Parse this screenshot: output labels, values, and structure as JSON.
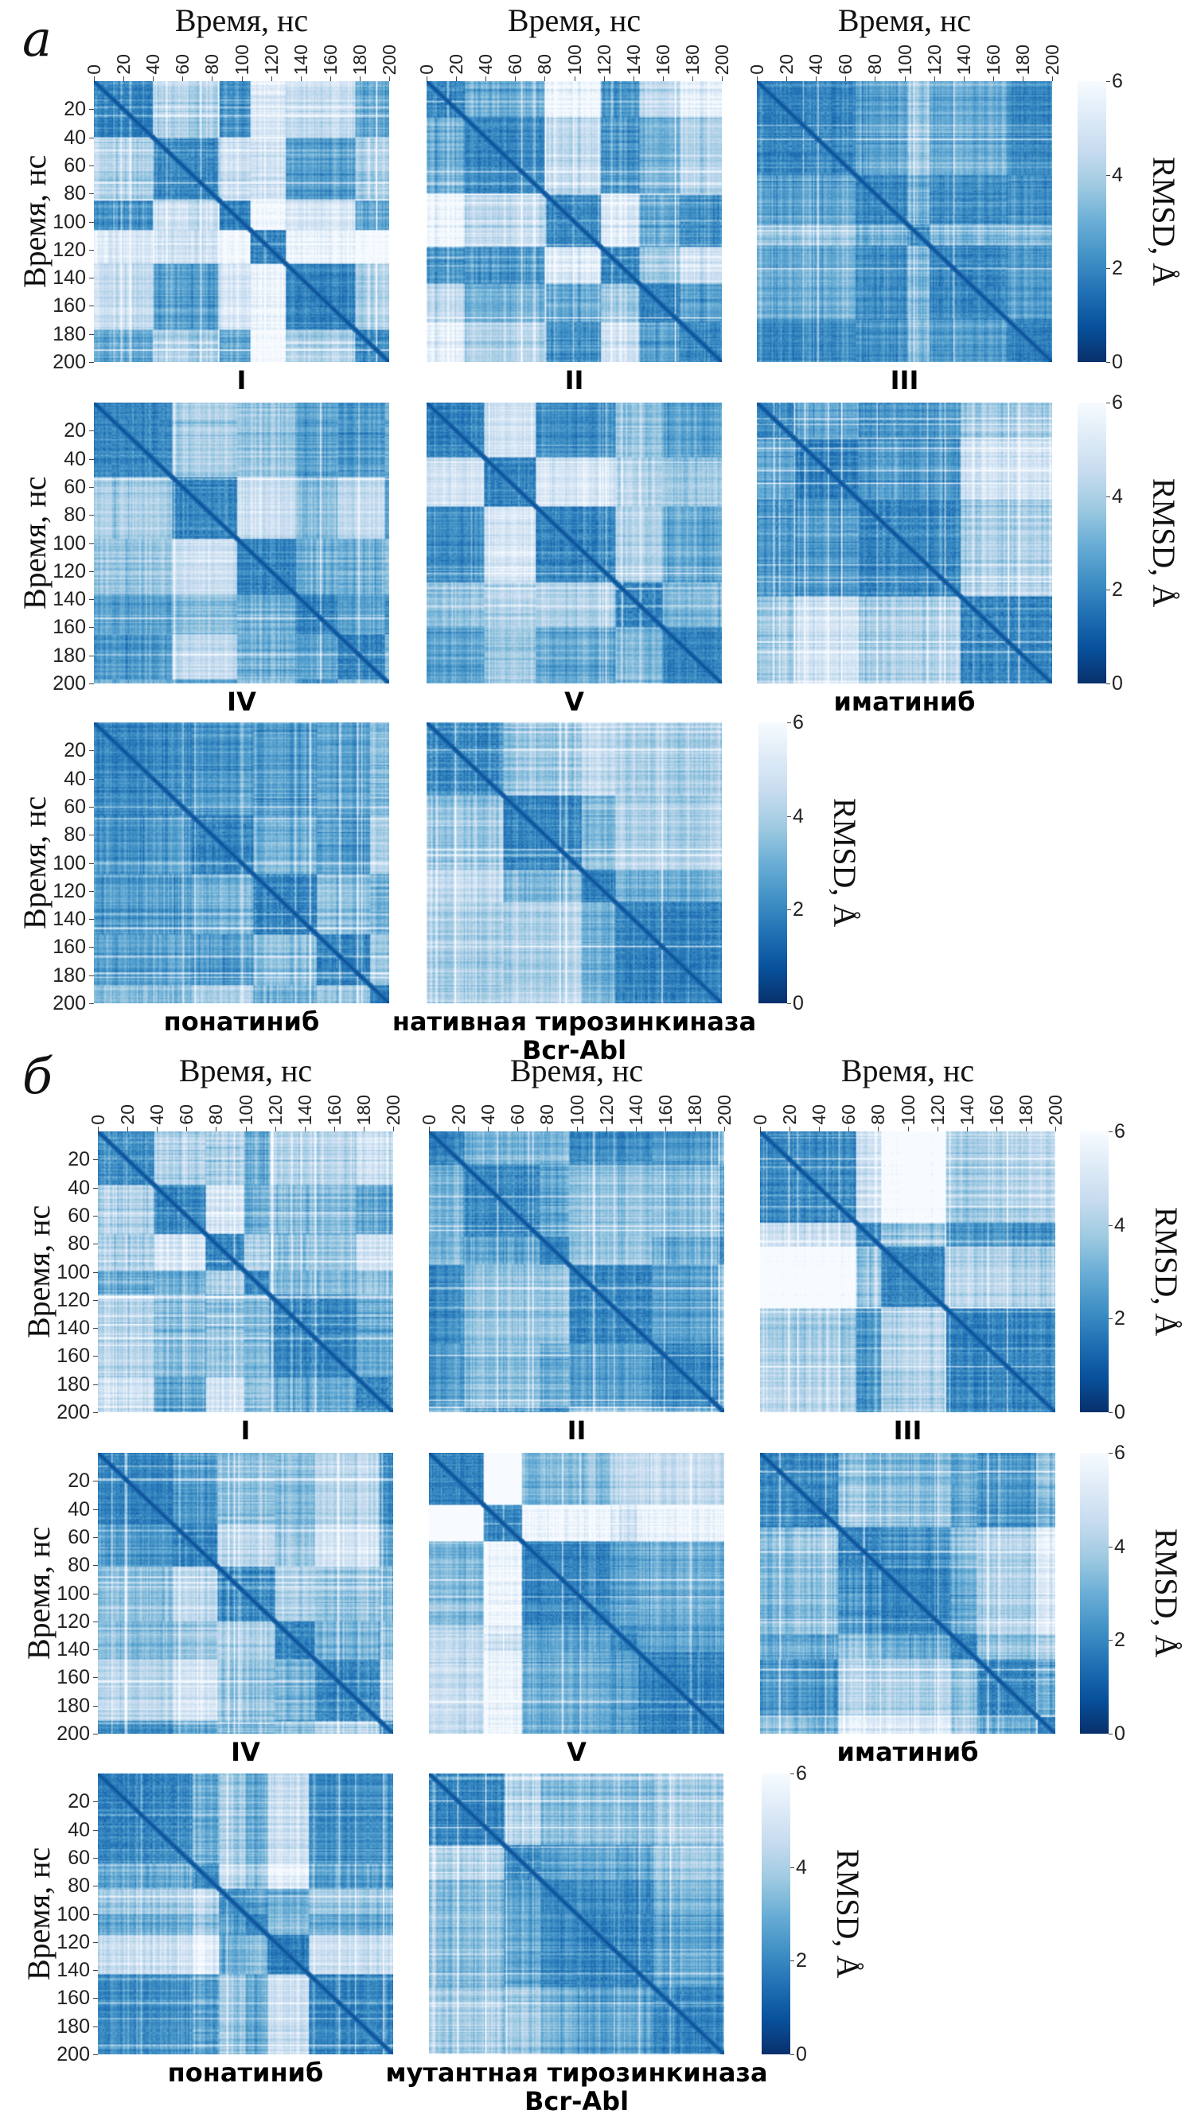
{
  "sections": [
    {
      "letter": "а"
    },
    {
      "letter": "б"
    }
  ],
  "colorbars": [
    {
      "section": 0,
      "row": 0,
      "label": "RMSD, Å",
      "ticks": [
        "0",
        "2",
        "4",
        "6"
      ],
      "range": [
        0,
        6
      ],
      "colormap": "Blues_r"
    },
    {
      "section": 0,
      "row": 1,
      "label": "RMSD, Å",
      "ticks": [
        "0",
        "2",
        "4",
        "6"
      ],
      "range": [
        0,
        6
      ],
      "colormap": "Blues_r"
    },
    {
      "section": 0,
      "row": 2,
      "label": "RMSD, Å",
      "ticks": [
        "0",
        "2",
        "4",
        "6"
      ],
      "range": [
        0,
        6
      ],
      "colormap": "Blues_r"
    },
    {
      "section": 1,
      "row": 0,
      "label": "RMSD, Å",
      "ticks": [
        "0",
        "2",
        "4",
        "6"
      ],
      "range": [
        0,
        6
      ],
      "colormap": "Blues_r"
    },
    {
      "section": 1,
      "row": 1,
      "label": "RMSD, Å",
      "ticks": [
        "0",
        "2",
        "4",
        "6"
      ],
      "range": [
        0,
        6
      ],
      "colormap": "Blues_r"
    },
    {
      "section": 1,
      "row": 2,
      "label": "RMSD, Å",
      "ticks": [
        "0",
        "2",
        "4",
        "6"
      ],
      "range": [
        0,
        6
      ],
      "colormap": "Blues_r"
    }
  ],
  "chart_data": [
    {
      "type": "heatmap",
      "section": 0,
      "row": 0,
      "col": 0,
      "title": [
        "I"
      ],
      "xlabel": "Время, нс",
      "ylabel": "Время, нс",
      "x_ticks": [
        "0",
        "20",
        "40",
        "60",
        "80",
        "100",
        "120",
        "140",
        "160",
        "180",
        "200"
      ],
      "y_ticks": [
        "20",
        "40",
        "60",
        "80",
        "100",
        "120",
        "140",
        "160",
        "180",
        "200"
      ],
      "xlim": [
        0,
        200
      ],
      "ylim": [
        200,
        0
      ],
      "value_range": [
        0,
        6
      ],
      "colormap": "Blues_r"
    },
    {
      "type": "heatmap",
      "section": 0,
      "row": 0,
      "col": 1,
      "title": [
        "II"
      ],
      "xlabel": "Время, нс",
      "x_ticks": [
        "0",
        "20",
        "40",
        "60",
        "80",
        "100",
        "120",
        "140",
        "160",
        "180",
        "200"
      ],
      "xlim": [
        0,
        200
      ],
      "ylim": [
        200,
        0
      ],
      "value_range": [
        0,
        6
      ],
      "colormap": "Blues_r"
    },
    {
      "type": "heatmap",
      "section": 0,
      "row": 0,
      "col": 2,
      "title": [
        "III"
      ],
      "xlabel": "Время, нс",
      "x_ticks": [
        "0",
        "20",
        "40",
        "60",
        "80",
        "100",
        "120",
        "140",
        "160",
        "180",
        "200"
      ],
      "xlim": [
        0,
        200
      ],
      "ylim": [
        200,
        0
      ],
      "value_range": [
        0,
        6
      ],
      "colormap": "Blues_r"
    },
    {
      "type": "heatmap",
      "section": 0,
      "row": 1,
      "col": 0,
      "title": [
        "IV"
      ],
      "ylabel": "Время, нс",
      "y_ticks": [
        "20",
        "40",
        "60",
        "80",
        "100",
        "120",
        "140",
        "160",
        "180",
        "200"
      ],
      "xlim": [
        0,
        200
      ],
      "ylim": [
        200,
        0
      ],
      "value_range": [
        0,
        6
      ],
      "colormap": "Blues_r"
    },
    {
      "type": "heatmap",
      "section": 0,
      "row": 1,
      "col": 1,
      "title": [
        "V"
      ],
      "xlim": [
        0,
        200
      ],
      "ylim": [
        200,
        0
      ],
      "value_range": [
        0,
        6
      ],
      "colormap": "Blues_r"
    },
    {
      "type": "heatmap",
      "section": 0,
      "row": 1,
      "col": 2,
      "title": [
        "иматиниб"
      ],
      "xlim": [
        0,
        200
      ],
      "ylim": [
        200,
        0
      ],
      "value_range": [
        0,
        6
      ],
      "colormap": "Blues_r"
    },
    {
      "type": "heatmap",
      "section": 0,
      "row": 2,
      "col": 0,
      "title": [
        "понатиниб"
      ],
      "ylabel": "Время, нс",
      "y_ticks": [
        "20",
        "40",
        "60",
        "80",
        "100",
        "120",
        "140",
        "160",
        "180",
        "200"
      ],
      "xlim": [
        0,
        200
      ],
      "ylim": [
        200,
        0
      ],
      "value_range": [
        0,
        6
      ],
      "colormap": "Blues_r"
    },
    {
      "type": "heatmap",
      "section": 0,
      "row": 2,
      "col": 1,
      "title": [
        "нативная тирозинкиназа",
        "Bcr-Abl"
      ],
      "xlim": [
        0,
        200
      ],
      "ylim": [
        200,
        0
      ],
      "value_range": [
        0,
        6
      ],
      "colormap": "Blues_r"
    },
    {
      "type": "heatmap",
      "section": 1,
      "row": 0,
      "col": 0,
      "title": [
        "I"
      ],
      "xlabel": "Время, нс",
      "ylabel": "Время, нс",
      "x_ticks": [
        "0",
        "20",
        "40",
        "60",
        "80",
        "100",
        "120",
        "140",
        "160",
        "180",
        "200"
      ],
      "y_ticks": [
        "20",
        "40",
        "60",
        "80",
        "100",
        "120",
        "140",
        "160",
        "180",
        "200"
      ],
      "xlim": [
        0,
        200
      ],
      "ylim": [
        200,
        0
      ],
      "value_range": [
        0,
        6
      ],
      "colormap": "Blues_r"
    },
    {
      "type": "heatmap",
      "section": 1,
      "row": 0,
      "col": 1,
      "title": [
        "II"
      ],
      "xlabel": "Время, нс",
      "x_ticks": [
        "0",
        "20",
        "40",
        "60",
        "80",
        "100",
        "120",
        "140",
        "160",
        "180",
        "200"
      ],
      "xlim": [
        0,
        200
      ],
      "ylim": [
        200,
        0
      ],
      "value_range": [
        0,
        6
      ],
      "colormap": "Blues_r"
    },
    {
      "type": "heatmap",
      "section": 1,
      "row": 0,
      "col": 2,
      "title": [
        "III"
      ],
      "xlabel": "Время, нс",
      "x_ticks": [
        "0",
        "20",
        "40",
        "60",
        "80",
        "100",
        "120",
        "140",
        "160",
        "180",
        "200"
      ],
      "xlim": [
        0,
        200
      ],
      "ylim": [
        200,
        0
      ],
      "value_range": [
        0,
        6
      ],
      "colormap": "Blues_r"
    },
    {
      "type": "heatmap",
      "section": 1,
      "row": 1,
      "col": 0,
      "title": [
        "IV"
      ],
      "ylabel": "Время, нс",
      "y_ticks": [
        "20",
        "40",
        "60",
        "80",
        "100",
        "120",
        "140",
        "160",
        "180",
        "200"
      ],
      "xlim": [
        0,
        200
      ],
      "ylim": [
        200,
        0
      ],
      "value_range": [
        0,
        6
      ],
      "colormap": "Blues_r"
    },
    {
      "type": "heatmap",
      "section": 1,
      "row": 1,
      "col": 1,
      "title": [
        "V"
      ],
      "xlim": [
        0,
        200
      ],
      "ylim": [
        200,
        0
      ],
      "value_range": [
        0,
        6
      ],
      "colormap": "Blues_r"
    },
    {
      "type": "heatmap",
      "section": 1,
      "row": 1,
      "col": 2,
      "title": [
        "иматиниб"
      ],
      "xlim": [
        0,
        200
      ],
      "ylim": [
        200,
        0
      ],
      "value_range": [
        0,
        6
      ],
      "colormap": "Blues_r"
    },
    {
      "type": "heatmap",
      "section": 1,
      "row": 2,
      "col": 0,
      "title": [
        "понатиниб"
      ],
      "ylabel": "Время, нс",
      "y_ticks": [
        "20",
        "40",
        "60",
        "80",
        "100",
        "120",
        "140",
        "160",
        "180",
        "200"
      ],
      "xlim": [
        0,
        200
      ],
      "ylim": [
        200,
        0
      ],
      "value_range": [
        0,
        6
      ],
      "colormap": "Blues_r"
    },
    {
      "type": "heatmap",
      "section": 1,
      "row": 2,
      "col": 1,
      "title": [
        "мутантная тирозинкиназа",
        "Bcr-Abl"
      ],
      "xlim": [
        0,
        200
      ],
      "ylim": [
        200,
        0
      ],
      "value_range": [
        0,
        6
      ],
      "colormap": "Blues_r"
    }
  ]
}
